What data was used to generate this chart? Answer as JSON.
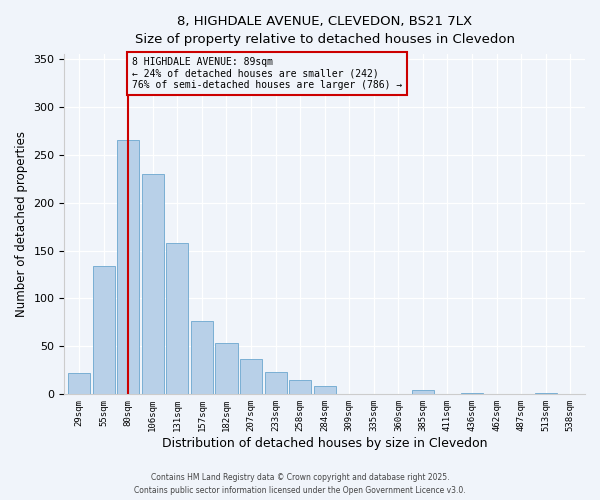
{
  "title_line1": "8, HIGHDALE AVENUE, CLEVEDON, BS21 7LX",
  "title_line2": "Size of property relative to detached houses in Clevedon",
  "xlabel": "Distribution of detached houses by size in Clevedon",
  "ylabel": "Number of detached properties",
  "categories": [
    "29sqm",
    "55sqm",
    "80sqm",
    "106sqm",
    "131sqm",
    "157sqm",
    "182sqm",
    "207sqm",
    "233sqm",
    "258sqm",
    "284sqm",
    "309sqm",
    "335sqm",
    "360sqm",
    "385sqm",
    "411sqm",
    "436sqm",
    "462sqm",
    "487sqm",
    "513sqm",
    "538sqm"
  ],
  "values": [
    22,
    134,
    265,
    230,
    158,
    77,
    54,
    37,
    23,
    15,
    9,
    0,
    0,
    0,
    5,
    0,
    1,
    0,
    0,
    1,
    0
  ],
  "bar_color": "#b8d0e8",
  "bar_edge_color": "#7aafd4",
  "vline_x": 2.0,
  "vline_color": "#cc0000",
  "annotation_title": "8 HIGHDALE AVENUE: 89sqm",
  "annotation_line2": "← 24% of detached houses are smaller (242)",
  "annotation_line3": "76% of semi-detached houses are larger (786) →",
  "annotation_box_color": "#cc0000",
  "ylim": [
    0,
    355
  ],
  "yticks": [
    0,
    50,
    100,
    150,
    200,
    250,
    300,
    350
  ],
  "bg_color": "#f0f4fa",
  "footnote1": "Contains HM Land Registry data © Crown copyright and database right 2025.",
  "footnote2": "Contains public sector information licensed under the Open Government Licence v3.0."
}
